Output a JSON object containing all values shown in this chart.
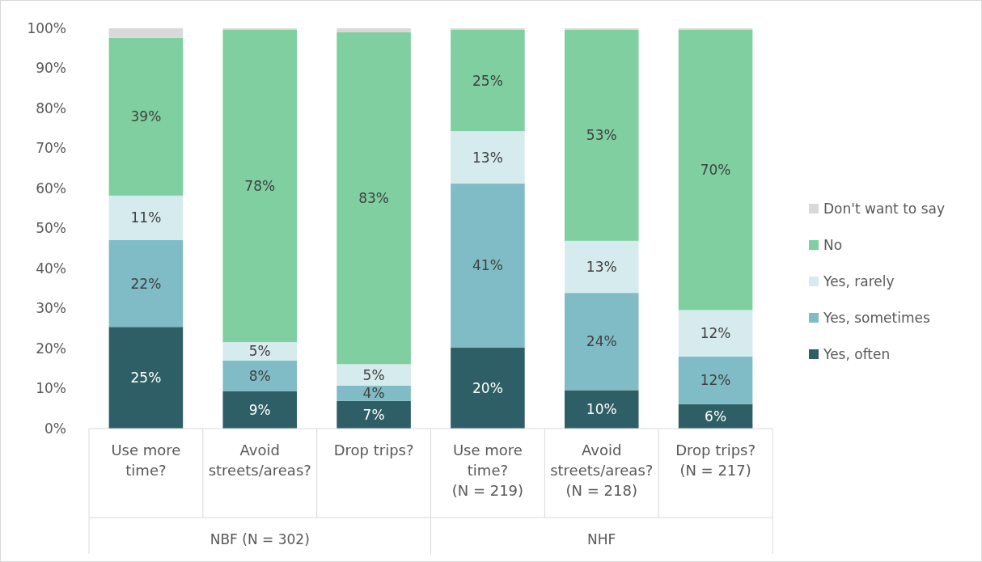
{
  "chart_data": {
    "type": "bar",
    "stacked": true,
    "categories": [
      "Use more time?",
      "Avoid streets/areas?",
      "Drop trips?",
      "Use more time? (N = 219)",
      "Avoid streets/areas? (N = 218)",
      "Drop trips? (N = 217)"
    ],
    "annotations": [
      "NBF (N = 302)",
      "NHF"
    ],
    "series": [
      {
        "name": "Yes, often",
        "color": "#2e5f66",
        "values": [
          25.4,
          9.3,
          6.9,
          20.2,
          9.6,
          6.1
        ],
        "value_labels": [
          "25%",
          "9%",
          "7%",
          "20%",
          "10%",
          "6%"
        ]
      },
      {
        "name": "Yes, sometimes",
        "color": "#7fbcc5",
        "values": [
          21.7,
          7.7,
          3.8,
          41.0,
          24.3,
          11.9
        ],
        "value_labels": [
          "22%",
          "8%",
          "4%",
          "41%",
          "24%",
          "12%"
        ]
      },
      {
        "name": "Yes, rarely",
        "color": "#d6ebee",
        "values": [
          11.1,
          4.6,
          5.4,
          13.1,
          13.0,
          11.6
        ],
        "value_labels": [
          "11%",
          "5%",
          "5%",
          "13%",
          "13%",
          "12%"
        ]
      },
      {
        "name": "No",
        "color": "#7fcfa0",
        "values": [
          39.4,
          78.0,
          82.9,
          25.3,
          52.7,
          70.0
        ],
        "value_labels": [
          "39%",
          "78%",
          "83%",
          "25%",
          "53%",
          "70%"
        ]
      },
      {
        "name": "Don't want to say",
        "color": "#d9d9d9",
        "values": [
          2.4,
          0.4,
          1.0,
          0.4,
          0.4,
          0.4
        ],
        "value_labels": [
          null,
          null,
          null,
          null,
          null,
          null
        ]
      }
    ],
    "ylim": [
      0,
      100
    ],
    "yticks": [
      {
        "value": 0,
        "label": "0%"
      },
      {
        "value": 10,
        "label": "10%"
      },
      {
        "value": 20,
        "label": "20%"
      },
      {
        "value": 30,
        "label": "30%"
      },
      {
        "value": 40,
        "label": "40%"
      },
      {
        "value": 50,
        "label": "50%"
      },
      {
        "value": 60,
        "label": "60%"
      },
      {
        "value": 70,
        "label": "70%"
      },
      {
        "value": 80,
        "label": "80%"
      },
      {
        "value": 90,
        "label": "90%"
      },
      {
        "value": 100,
        "label": "100%"
      }
    ],
    "grid": false,
    "legend": "right"
  }
}
